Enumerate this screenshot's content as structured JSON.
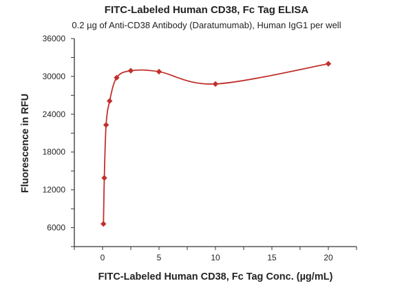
{
  "chart_data": {
    "type": "scatter",
    "title": "FITC-Labeled Human CD38, Fc Tag ELISA",
    "subtitle": "0.2 µg of Anti-CD38 Antibody (Daratumumab), Human IgG1 per well",
    "xlabel": "FITC-Labeled Human CD38, Fc Tag Conc. (µg/mL)",
    "ylabel": "Fluorescence in RFU",
    "xlim": [
      -2.5,
      22.5
    ],
    "ylim": [
      3000,
      36000
    ],
    "xticks": [
      "0",
      "5",
      "10",
      "15",
      "20"
    ],
    "yticks": [
      "6000",
      "12000",
      "18000",
      "24000",
      "30000",
      "36000"
    ],
    "grid": false,
    "color": "#c0302c",
    "marker": "diamond",
    "fit_curve": "smooth",
    "series": [
      {
        "x": [
          0.078,
          0.156,
          0.3125,
          0.625,
          1.25,
          2.5,
          5,
          10,
          20
        ],
        "y": [
          6600,
          13900,
          22300,
          26100,
          29800,
          30900,
          30750,
          28800,
          32000
        ]
      }
    ]
  }
}
